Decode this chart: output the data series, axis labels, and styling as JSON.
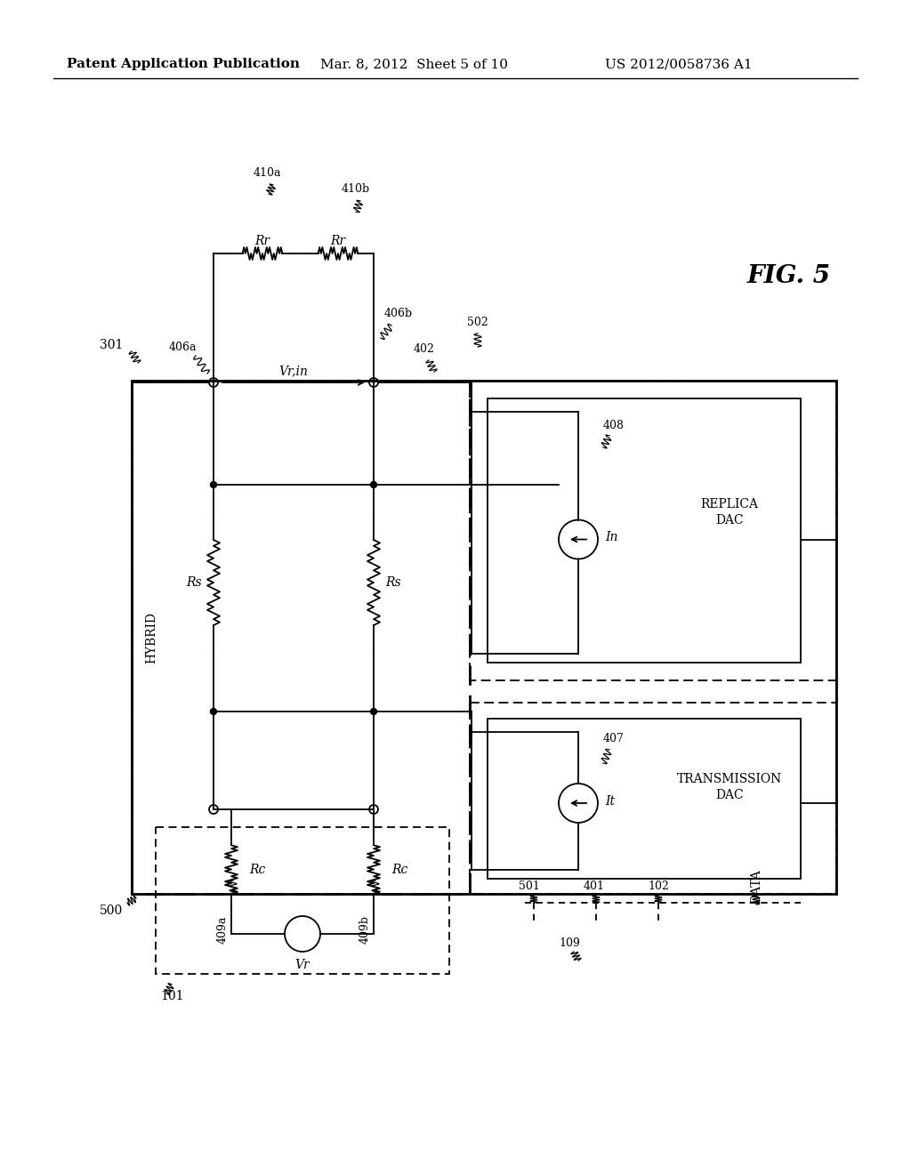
{
  "bg_color": "#ffffff",
  "header_left": "Patent Application Publication",
  "header_mid": "Mar. 8, 2012  Sheet 5 of 10",
  "header_right": "US 2012/0058736 A1",
  "fig_label": "FIG. 5",
  "lw": 1.3,
  "lw_thick": 2.0,
  "fs": 10,
  "fs_small": 9,
  "fs_fig": 20,
  "fs_header": 11
}
